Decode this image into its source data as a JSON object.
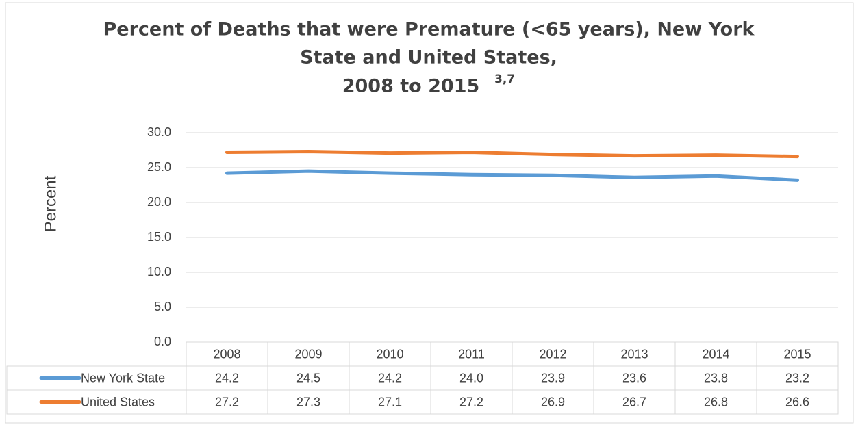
{
  "chart_data": {
    "type": "line",
    "title": [
      "Percent of Deaths that were Premature (<65 years), New York",
      "State and United States,",
      "2008 to 2015"
    ],
    "title_superscript": "3,7",
    "y_label": "Percent",
    "categories": [
      "2008",
      "2009",
      "2010",
      "2011",
      "2012",
      "2013",
      "2014",
      "2015"
    ],
    "series": [
      {
        "name": "New York State",
        "color": "#5b9bd5",
        "values": [
          24.2,
          24.5,
          24.2,
          24.0,
          23.9,
          23.6,
          23.8,
          23.2
        ],
        "value_labels": [
          "24.2",
          "24.5",
          "24.2",
          "24.0",
          "23.9",
          "23.6",
          "23.8",
          "23.2"
        ]
      },
      {
        "name": "United States",
        "color": "#ed7d31",
        "values": [
          27.2,
          27.3,
          27.1,
          27.2,
          26.9,
          26.7,
          26.8,
          26.6
        ],
        "value_labels": [
          "27.2",
          "27.3",
          "27.1",
          "27.2",
          "26.9",
          "26.7",
          "26.8",
          "26.6"
        ]
      }
    ],
    "ylim": [
      0,
      30
    ],
    "yticks": [
      {
        "value": 0,
        "label": "0.0"
      },
      {
        "value": 5,
        "label": "5.0"
      },
      {
        "value": 10,
        "label": "10.0"
      },
      {
        "value": 15,
        "label": "15.0"
      },
      {
        "value": 20,
        "label": "20.0"
      },
      {
        "value": 25,
        "label": "25.0"
      },
      {
        "value": 30,
        "label": "30.0"
      }
    ],
    "grid": true
  }
}
